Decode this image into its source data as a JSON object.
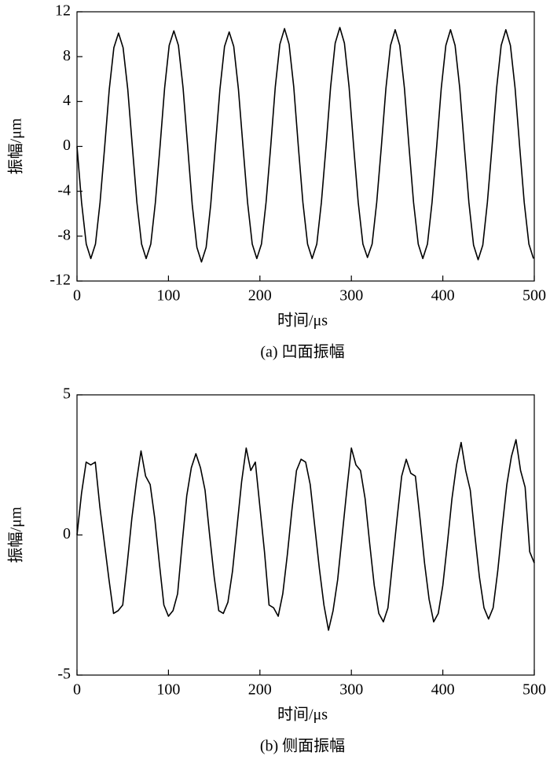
{
  "chart_data": [
    {
      "type": "line",
      "caption": "(a) 凹面振幅",
      "xlabel": "时间/μs",
      "ylabel": "振幅/μm",
      "color": "#000000",
      "xlim": [
        0,
        500
      ],
      "xticks": [
        0,
        100,
        200,
        300,
        400,
        500
      ],
      "ylim": [
        -12,
        12
      ],
      "yticks": [
        -12,
        -8,
        -4,
        0,
        4,
        8,
        12
      ],
      "x": [
        0,
        5.0,
        10.1,
        15.1,
        20.2,
        25.2,
        30.3,
        35.3,
        40.3,
        45.4,
        50.4,
        55.5,
        60.5,
        65.5,
        70.6,
        75.6,
        80.7,
        85.7,
        90.8,
        95.8,
        100.8,
        105.9,
        110.9,
        116.0,
        121.0,
        126.0,
        131.1,
        136.1,
        141.2,
        146.2,
        151.3,
        156.3,
        161.3,
        166.4,
        171.4,
        176.5,
        181.5,
        186.5,
        191.6,
        196.6,
        201.7,
        206.7,
        211.8,
        216.8,
        221.8,
        226.9,
        231.9,
        237.0,
        242.0,
        247.0,
        252.1,
        257.1,
        262.2,
        267.2,
        272.3,
        277.3,
        282.3,
        287.4,
        292.4,
        297.5,
        302.5,
        307.5,
        312.6,
        317.6,
        322.7,
        327.7,
        332.8,
        337.8,
        342.8,
        347.9,
        352.9,
        358.0,
        363.0,
        368.0,
        373.1,
        378.1,
        383.2,
        388.2,
        393.3,
        398.3,
        403.3,
        408.4,
        413.4,
        418.5,
        423.5,
        428.5,
        433.6,
        438.6,
        443.7,
        448.7,
        453.8,
        458.8,
        463.8,
        468.9,
        473.9,
        479.0,
        484.0,
        489.0,
        494.1,
        499.1
      ],
      "values": [
        0,
        -5,
        -8.7,
        -10,
        -8.7,
        -5,
        0,
        5.1,
        8.8,
        10.1,
        8.8,
        5.1,
        0,
        -5,
        -8.7,
        -10,
        -8.7,
        -5,
        0,
        5.2,
        9,
        10.3,
        9,
        5.2,
        0,
        -5.2,
        -9,
        -10.3,
        -9,
        -5.2,
        0,
        5.1,
        8.9,
        10.2,
        8.9,
        5.1,
        0,
        -5,
        -8.7,
        -10,
        -8.7,
        -5,
        0,
        5.3,
        9.1,
        10.5,
        9.1,
        5.3,
        0,
        -5,
        -8.7,
        -10,
        -8.7,
        -5,
        0,
        5.3,
        9.2,
        10.6,
        9.2,
        5.3,
        0,
        -5,
        -8.7,
        -9.9,
        -8.7,
        -5,
        0,
        5.2,
        9,
        10.4,
        9,
        5.2,
        0,
        -5,
        -8.7,
        -10,
        -8.7,
        -5,
        0,
        5.2,
        9,
        10.4,
        9,
        5.2,
        0,
        -5,
        -8.8,
        -10.1,
        -8.8,
        -5,
        0,
        5.2,
        9,
        10.4,
        9,
        5.2,
        0,
        -5,
        -8.7,
        -10
      ]
    },
    {
      "type": "line",
      "caption": "(b) 侧面振幅",
      "xlabel": "时间/μs",
      "ylabel": "振幅/μm",
      "color": "#000000",
      "xlim": [
        0,
        500
      ],
      "xticks": [
        0,
        100,
        200,
        300,
        400,
        500
      ],
      "ylim": [
        -5,
        5
      ],
      "yticks": [
        -5,
        0,
        5
      ],
      "x": [
        0,
        5,
        10,
        15,
        20,
        25,
        30,
        35,
        40,
        45,
        50,
        55,
        60,
        65,
        70,
        75,
        80,
        85,
        90,
        95,
        100,
        105,
        110,
        115,
        120,
        125,
        130,
        135,
        140,
        145,
        150,
        155,
        160,
        165,
        170,
        175,
        180,
        185,
        190,
        195,
        200,
        205,
        210,
        215,
        220,
        225,
        230,
        235,
        240,
        245,
        250,
        255,
        260,
        265,
        270,
        275,
        280,
        285,
        290,
        295,
        300,
        305,
        310,
        315,
        320,
        325,
        330,
        335,
        340,
        345,
        350,
        355,
        360,
        365,
        370,
        375,
        380,
        385,
        390,
        395,
        400,
        405,
        410,
        415,
        420,
        425,
        430,
        435,
        440,
        445,
        450,
        455,
        460,
        465,
        470,
        475,
        480,
        485,
        490,
        495,
        500
      ],
      "values": [
        0,
        1.5,
        2.6,
        2.5,
        2.6,
        1.0,
        -0.3,
        -1.6,
        -2.8,
        -2.7,
        -2.5,
        -1.0,
        0.6,
        1.9,
        3.0,
        2.1,
        1.8,
        0.6,
        -1.0,
        -2.5,
        -2.9,
        -2.7,
        -2.1,
        -0.3,
        1.4,
        2.4,
        2.9,
        2.4,
        1.6,
        0,
        -1.5,
        -2.7,
        -2.8,
        -2.4,
        -1.3,
        0.3,
        1.9,
        3.1,
        2.3,
        2.6,
        1.0,
        -0.6,
        -2.5,
        -2.6,
        -2.9,
        -2.1,
        -0.7,
        0.9,
        2.3,
        2.7,
        2.6,
        1.8,
        0.3,
        -1.2,
        -2.5,
        -3.4,
        -2.7,
        -1.6,
        0,
        1.6,
        3.1,
        2.5,
        2.3,
        1.3,
        -0.3,
        -1.8,
        -2.8,
        -3.1,
        -2.6,
        -1.0,
        0.6,
        2.1,
        2.7,
        2.2,
        2.1,
        0.6,
        -1.0,
        -2.3,
        -3.1,
        -2.8,
        -1.8,
        -0.3,
        1.3,
        2.5,
        3.3,
        2.3,
        1.6,
        0,
        -1.5,
        -2.6,
        -3.0,
        -2.6,
        -1.3,
        0.3,
        1.8,
        2.8,
        3.4,
        2.3,
        1.7,
        -0.6,
        -1.0
      ]
    }
  ]
}
